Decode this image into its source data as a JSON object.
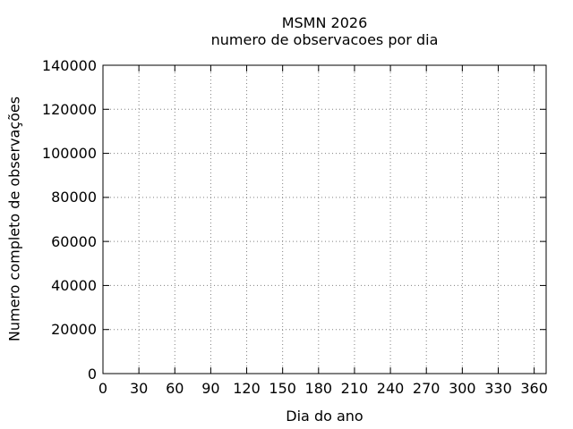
{
  "chart_data": {
    "type": "line",
    "title": "MSMN 2026",
    "subtitle": "numero de observacoes por dia",
    "xlabel": "Dia do ano",
    "ylabel": "Numero completo de observações",
    "xlim": [
      0,
      370
    ],
    "ylim": [
      0,
      140000
    ],
    "xticks": [
      0,
      30,
      60,
      90,
      120,
      150,
      180,
      210,
      240,
      270,
      300,
      330,
      360
    ],
    "yticks": [
      0,
      20000,
      40000,
      60000,
      80000,
      100000,
      120000,
      140000
    ],
    "grid": true,
    "grid_style": "dotted",
    "legend": "none",
    "series": [],
    "colors": {
      "background": "#ffffff",
      "frame": "#000000",
      "grid": "#808080",
      "text": "#000000"
    }
  }
}
